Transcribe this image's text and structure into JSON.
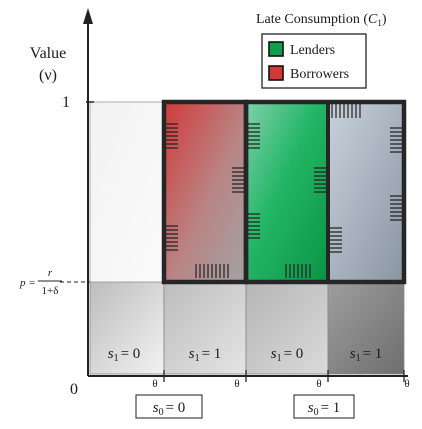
{
  "legend": {
    "title_main": "Late Consumption (",
    "title_var": "C",
    "title_sub": "1",
    "title_close": ")",
    "items": [
      {
        "label": "Lenders",
        "color": "#0f9e4a"
      },
      {
        "label": "Borrowers",
        "color": "#d23a3a"
      }
    ]
  },
  "y_axis": {
    "title": "Value",
    "title_symbol": "(ν)",
    "tick_top": "1",
    "origin": "0",
    "p_lhs": "p =",
    "p_numerator": "r",
    "p_denominator": "1+δ"
  },
  "cells": [
    {
      "var": "s",
      "sub": "1",
      "val": "= 0"
    },
    {
      "var": "s",
      "sub": "1",
      "val": "= 1"
    },
    {
      "var": "s",
      "sub": "1",
      "val": "= 0"
    },
    {
      "var": "s",
      "sub": "1",
      "val": "= 1"
    }
  ],
  "theta_labels": [
    "θ",
    "θ",
    "θ",
    "θ"
  ],
  "groups": [
    {
      "var": "s",
      "sub": "0",
      "val": "= 0"
    },
    {
      "var": "s",
      "sub": "0",
      "val": "= 1"
    }
  ]
}
